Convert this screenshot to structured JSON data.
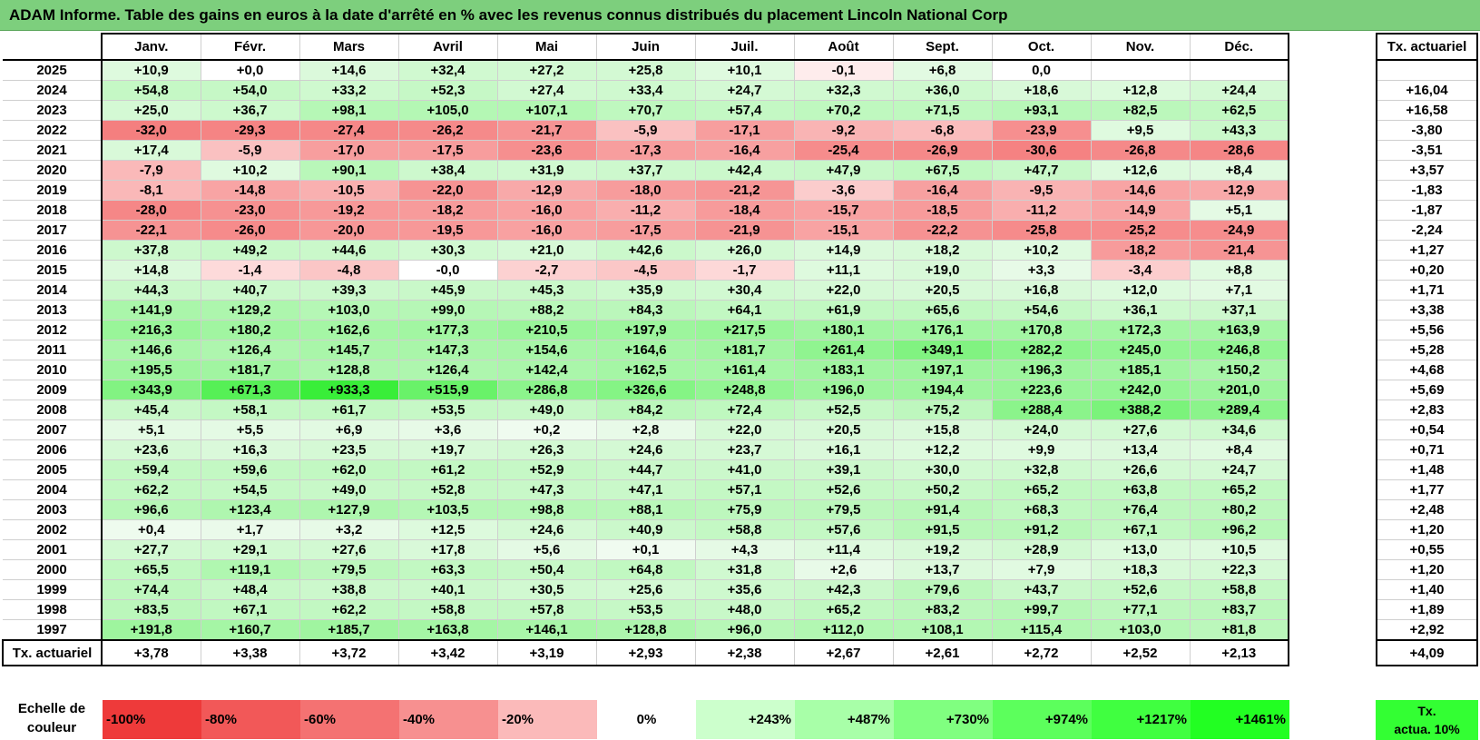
{
  "title": "ADAM Informe. Table des gains en euros à la date d'arrêté en % avec les revenus connus distribués du placement Lincoln National Corp",
  "chart_data": {
    "type": "table",
    "months": [
      "Janv.",
      "Févr.",
      "Mars",
      "Avril",
      "Mai",
      "Juin",
      "Juil.",
      "Août",
      "Sept.",
      "Oct.",
      "Nov.",
      "Déc."
    ],
    "rate_header": "Tx. actuariel",
    "rows": [
      {
        "year": "2025",
        "values": [
          "+10,9",
          "+0,0",
          "+14,6",
          "+32,4",
          "+27,2",
          "+25,8",
          "+10,1",
          "-0,1",
          "+6,8",
          "0,0",
          "",
          ""
        ],
        "rate": ""
      },
      {
        "year": "2024",
        "values": [
          "+54,8",
          "+54,0",
          "+33,2",
          "+52,3",
          "+27,4",
          "+33,4",
          "+24,7",
          "+32,3",
          "+36,0",
          "+18,6",
          "+12,8",
          "+24,4"
        ],
        "rate": "+16,04"
      },
      {
        "year": "2023",
        "values": [
          "+25,0",
          "+36,7",
          "+98,1",
          "+105,0",
          "+107,1",
          "+70,7",
          "+57,4",
          "+70,2",
          "+71,5",
          "+93,1",
          "+82,5",
          "+62,5"
        ],
        "rate": "+16,58"
      },
      {
        "year": "2022",
        "values": [
          "-32,0",
          "-29,3",
          "-27,4",
          "-26,2",
          "-21,7",
          "-5,9",
          "-17,1",
          "-9,2",
          "-6,8",
          "-23,9",
          "+9,5",
          "+43,3"
        ],
        "rate": "-3,80"
      },
      {
        "year": "2021",
        "values": [
          "+17,4",
          "-5,9",
          "-17,0",
          "-17,5",
          "-23,6",
          "-17,3",
          "-16,4",
          "-25,4",
          "-26,9",
          "-30,6",
          "-26,8",
          "-28,6"
        ],
        "rate": "-3,51"
      },
      {
        "year": "2020",
        "values": [
          "-7,9",
          "+10,2",
          "+90,1",
          "+38,4",
          "+31,9",
          "+37,7",
          "+42,4",
          "+47,9",
          "+67,5",
          "+47,7",
          "+12,6",
          "+8,4"
        ],
        "rate": "+3,57"
      },
      {
        "year": "2019",
        "values": [
          "-8,1",
          "-14,8",
          "-10,5",
          "-22,0",
          "-12,9",
          "-18,0",
          "-21,2",
          "-3,6",
          "-16,4",
          "-9,5",
          "-14,6",
          "-12,9"
        ],
        "rate": "-1,83"
      },
      {
        "year": "2018",
        "values": [
          "-28,0",
          "-23,0",
          "-19,2",
          "-18,2",
          "-16,0",
          "-11,2",
          "-18,4",
          "-15,7",
          "-18,5",
          "-11,2",
          "-14,9",
          "+5,1"
        ],
        "rate": "-1,87"
      },
      {
        "year": "2017",
        "values": [
          "-22,1",
          "-26,0",
          "-20,0",
          "-19,5",
          "-16,0",
          "-17,5",
          "-21,9",
          "-15,1",
          "-22,2",
          "-25,8",
          "-25,2",
          "-24,9"
        ],
        "rate": "-2,24"
      },
      {
        "year": "2016",
        "values": [
          "+37,8",
          "+49,2",
          "+44,6",
          "+30,3",
          "+21,0",
          "+42,6",
          "+26,0",
          "+14,9",
          "+18,2",
          "+10,2",
          "-18,2",
          "-21,4"
        ],
        "rate": "+1,27"
      },
      {
        "year": "2015",
        "values": [
          "+14,8",
          "-1,4",
          "-4,8",
          "-0,0",
          "-2,7",
          "-4,5",
          "-1,7",
          "+11,1",
          "+19,0",
          "+3,3",
          "-3,4",
          "+8,8"
        ],
        "rate": "+0,20"
      },
      {
        "year": "2014",
        "values": [
          "+44,3",
          "+40,7",
          "+39,3",
          "+45,9",
          "+45,3",
          "+35,9",
          "+30,4",
          "+22,0",
          "+20,5",
          "+16,8",
          "+12,0",
          "+7,1"
        ],
        "rate": "+1,71"
      },
      {
        "year": "2013",
        "values": [
          "+141,9",
          "+129,2",
          "+103,0",
          "+99,0",
          "+88,2",
          "+84,3",
          "+64,1",
          "+61,9",
          "+65,6",
          "+54,6",
          "+36,1",
          "+37,1"
        ],
        "rate": "+3,38"
      },
      {
        "year": "2012",
        "values": [
          "+216,3",
          "+180,2",
          "+162,6",
          "+177,3",
          "+210,5",
          "+197,9",
          "+217,5",
          "+180,1",
          "+176,1",
          "+170,8",
          "+172,3",
          "+163,9"
        ],
        "rate": "+5,56"
      },
      {
        "year": "2011",
        "values": [
          "+146,6",
          "+126,4",
          "+145,7",
          "+147,3",
          "+154,6",
          "+164,6",
          "+181,7",
          "+261,4",
          "+349,1",
          "+282,2",
          "+245,0",
          "+246,8"
        ],
        "rate": "+5,28"
      },
      {
        "year": "2010",
        "values": [
          "+195,5",
          "+181,7",
          "+128,8",
          "+126,4",
          "+142,4",
          "+162,5",
          "+161,4",
          "+183,1",
          "+197,1",
          "+196,3",
          "+185,1",
          "+150,2"
        ],
        "rate": "+4,68"
      },
      {
        "year": "2009",
        "values": [
          "+343,9",
          "+671,3",
          "+933,3",
          "+515,9",
          "+286,8",
          "+326,6",
          "+248,8",
          "+196,0",
          "+194,4",
          "+223,6",
          "+242,0",
          "+201,0"
        ],
        "rate": "+5,69"
      },
      {
        "year": "2008",
        "values": [
          "+45,4",
          "+58,1",
          "+61,7",
          "+53,5",
          "+49,0",
          "+84,2",
          "+72,4",
          "+52,5",
          "+75,2",
          "+288,4",
          "+388,2",
          "+289,4"
        ],
        "rate": "+2,83"
      },
      {
        "year": "2007",
        "values": [
          "+5,1",
          "+5,5",
          "+6,9",
          "+3,6",
          "+0,2",
          "+2,8",
          "+22,0",
          "+20,5",
          "+15,8",
          "+24,0",
          "+27,6",
          "+34,6"
        ],
        "rate": "+0,54"
      },
      {
        "year": "2006",
        "values": [
          "+23,6",
          "+16,3",
          "+23,5",
          "+19,7",
          "+26,3",
          "+24,6",
          "+23,7",
          "+16,1",
          "+12,2",
          "+9,9",
          "+13,4",
          "+8,4"
        ],
        "rate": "+0,71"
      },
      {
        "year": "2005",
        "values": [
          "+59,4",
          "+59,6",
          "+62,0",
          "+61,2",
          "+52,9",
          "+44,7",
          "+41,0",
          "+39,1",
          "+30,0",
          "+32,8",
          "+26,6",
          "+24,7"
        ],
        "rate": "+1,48"
      },
      {
        "year": "2004",
        "values": [
          "+62,2",
          "+54,5",
          "+49,0",
          "+52,8",
          "+47,3",
          "+47,1",
          "+57,1",
          "+52,6",
          "+50,2",
          "+65,2",
          "+63,8",
          "+65,2"
        ],
        "rate": "+1,77"
      },
      {
        "year": "2003",
        "values": [
          "+96,6",
          "+123,4",
          "+127,9",
          "+103,5",
          "+98,8",
          "+88,1",
          "+75,9",
          "+79,5",
          "+91,4",
          "+68,3",
          "+76,4",
          "+80,2"
        ],
        "rate": "+2,48"
      },
      {
        "year": "2002",
        "values": [
          "+0,4",
          "+1,7",
          "+3,2",
          "+12,5",
          "+24,6",
          "+40,9",
          "+58,8",
          "+57,6",
          "+91,5",
          "+91,2",
          "+67,1",
          "+96,2"
        ],
        "rate": "+1,20"
      },
      {
        "year": "2001",
        "values": [
          "+27,7",
          "+29,1",
          "+27,6",
          "+17,8",
          "+5,6",
          "+0,1",
          "+4,3",
          "+11,4",
          "+19,2",
          "+28,9",
          "+13,0",
          "+10,5"
        ],
        "rate": "+0,55"
      },
      {
        "year": "2000",
        "values": [
          "+65,5",
          "+119,1",
          "+79,5",
          "+63,3",
          "+50,4",
          "+64,8",
          "+31,8",
          "+2,6",
          "+13,7",
          "+7,9",
          "+18,3",
          "+22,3"
        ],
        "rate": "+1,20"
      },
      {
        "year": "1999",
        "values": [
          "+74,4",
          "+48,4",
          "+38,8",
          "+40,1",
          "+30,5",
          "+25,6",
          "+35,6",
          "+42,3",
          "+79,6",
          "+43,7",
          "+52,6",
          "+58,8"
        ],
        "rate": "+1,40"
      },
      {
        "year": "1998",
        "values": [
          "+83,5",
          "+67,1",
          "+62,2",
          "+58,8",
          "+57,8",
          "+53,5",
          "+48,0",
          "+65,2",
          "+83,2",
          "+99,7",
          "+77,1",
          "+83,7"
        ],
        "rate": "+1,89"
      },
      {
        "year": "1997",
        "values": [
          "+191,8",
          "+160,7",
          "+185,7",
          "+163,8",
          "+146,1",
          "+128,8",
          "+96,0",
          "+112,0",
          "+108,1",
          "+115,4",
          "+103,0",
          "+81,8"
        ],
        "rate": "+2,92"
      }
    ],
    "footer": {
      "label": "Tx. actuariel",
      "values": [
        "+3,78",
        "+3,38",
        "+3,72",
        "+3,42",
        "+3,19",
        "+2,93",
        "+2,38",
        "+2,67",
        "+2,61",
        "+2,72",
        "+2,52",
        "+2,13"
      ],
      "rate": "+4,09"
    },
    "scale": {
      "label_line1": "Echelle de",
      "label_line2": "couleur",
      "steps": [
        "-100%",
        "-80%",
        "-60%",
        "-40%",
        "-20%",
        "0%",
        "+243%",
        "+487%",
        "+730%",
        "+974%",
        "+1217%",
        "+1461%"
      ],
      "colors": [
        "#ee3a3a",
        "#f25858",
        "#f47272",
        "#f79090",
        "#fbbaba",
        "#ffffff",
        "#ccffcc",
        "#a8ffa8",
        "#80ff80",
        "#5cff5c",
        "#40ff40",
        "#22ff22"
      ],
      "rate_line1": "Tx.",
      "rate_line2": "actua. 10%",
      "rate_color": "#33ff33"
    }
  }
}
